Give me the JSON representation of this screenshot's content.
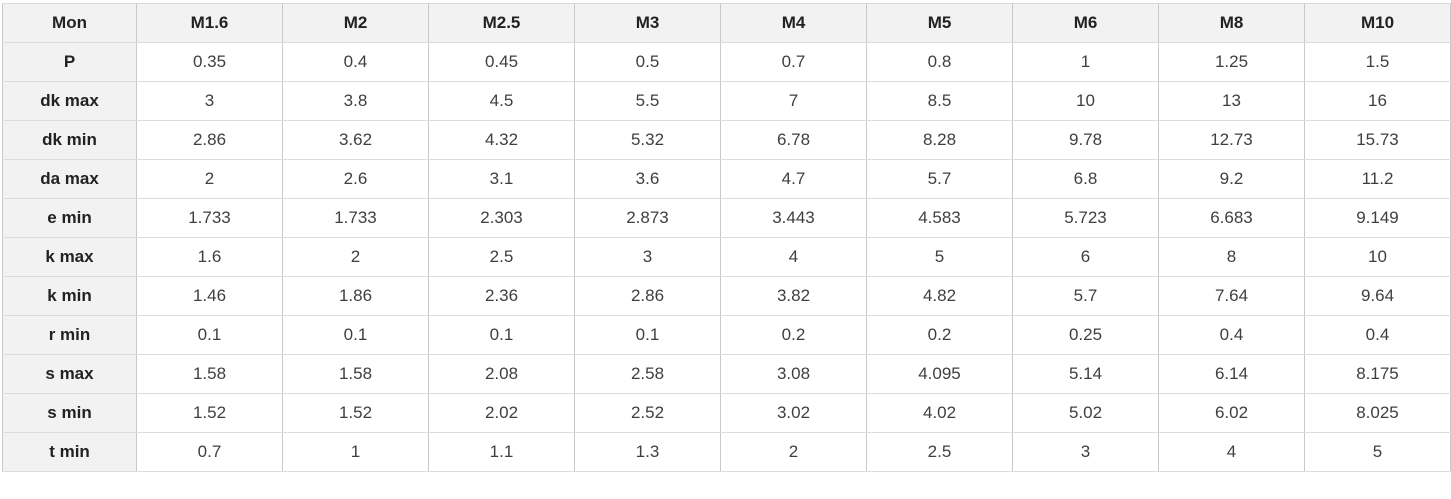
{
  "table": {
    "header": [
      "Mon",
      "M1.6",
      "M2",
      "M2.5",
      "M3",
      "M4",
      "M5",
      "M6",
      "M8",
      "M10"
    ],
    "rows": [
      {
        "label": "P",
        "values": [
          "0.35",
          "0.4",
          "0.45",
          "0.5",
          "0.7",
          "0.8",
          "1",
          "1.25",
          "1.5"
        ]
      },
      {
        "label": "dk max",
        "values": [
          "3",
          "3.8",
          "4.5",
          "5.5",
          "7",
          "8.5",
          "10",
          "13",
          "16"
        ]
      },
      {
        "label": "dk min",
        "values": [
          "2.86",
          "3.62",
          "4.32",
          "5.32",
          "6.78",
          "8.28",
          "9.78",
          "12.73",
          "15.73"
        ]
      },
      {
        "label": "da max",
        "values": [
          "2",
          "2.6",
          "3.1",
          "3.6",
          "4.7",
          "5.7",
          "6.8",
          "9.2",
          "11.2"
        ]
      },
      {
        "label": "e min",
        "values": [
          "1.733",
          "1.733",
          "2.303",
          "2.873",
          "3.443",
          "4.583",
          "5.723",
          "6.683",
          "9.149"
        ]
      },
      {
        "label": "k max",
        "values": [
          "1.6",
          "2",
          "2.5",
          "3",
          "4",
          "5",
          "6",
          "8",
          "10"
        ]
      },
      {
        "label": "k min",
        "values": [
          "1.46",
          "1.86",
          "2.36",
          "2.86",
          "3.82",
          "4.82",
          "5.7",
          "7.64",
          "9.64"
        ]
      },
      {
        "label": "r min",
        "values": [
          "0.1",
          "0.1",
          "0.1",
          "0.1",
          "0.2",
          "0.2",
          "0.25",
          "0.4",
          "0.4"
        ]
      },
      {
        "label": "s max",
        "values": [
          "1.58",
          "1.58",
          "2.08",
          "2.58",
          "3.08",
          "4.095",
          "5.14",
          "6.14",
          "8.175"
        ]
      },
      {
        "label": "s min",
        "values": [
          "1.52",
          "1.52",
          "2.02",
          "2.52",
          "3.02",
          "4.02",
          "5.02",
          "6.02",
          "8.025"
        ]
      },
      {
        "label": "t min",
        "values": [
          "0.7",
          "1",
          "1.1",
          "1.3",
          "2",
          "2.5",
          "3",
          "4",
          "5"
        ]
      }
    ]
  },
  "colors": {
    "header_background": "#f2f2f2",
    "border_vertical": "#c9c9c9",
    "border_horizontal": "#dcdcdc",
    "label_text": "#222222",
    "value_text": "#3f3f3f"
  }
}
